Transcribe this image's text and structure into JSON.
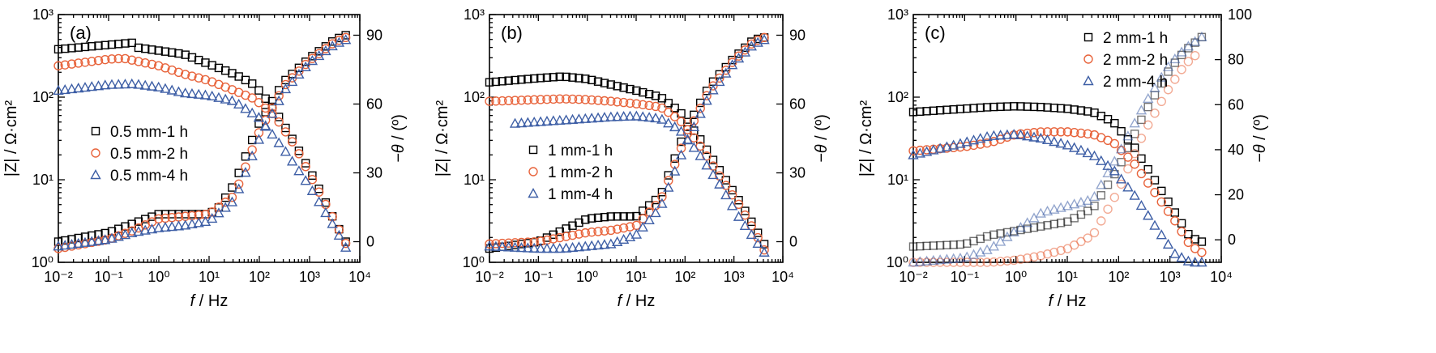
{
  "chart_data": [
    {
      "type": "scatter",
      "panel_label": "(a)",
      "xlabel_italic": "f",
      "xlabel_unit": " / Hz",
      "ylabel": "|Z| / Ω·cm²",
      "y2label_italic": "−θ",
      "y2label_unit": " / (º)",
      "x_scale": "log",
      "xlim": [
        0.01,
        10000
      ],
      "x_tick_labels": [
        "10⁻²",
        "10⁻¹",
        "10⁰",
        "10¹",
        "10²",
        "10³",
        "10⁴"
      ],
      "y_scale": "log",
      "ylim": [
        1,
        1000
      ],
      "y_tick_labels": [
        "10⁰",
        "10¹",
        "10²",
        "10³"
      ],
      "y2lim": [
        -9,
        99
      ],
      "y2_ticks": [
        0,
        30,
        60,
        90
      ],
      "y2_tick_labels": [
        "0",
        "30",
        "60",
        "90"
      ],
      "legend_position": "middle-left",
      "series": [
        {
          "name": "0.5 mm-1 h",
          "marker": "square",
          "color": "#000000",
          "modulus": {
            "log_f": [
              -2,
              -0.5,
              -1,
              0.5,
              1,
              1.5,
              1.9,
              2.3,
              2.7,
              3.1,
              3.5,
              3.72
            ],
            "log_z": [
              2.58,
              2.66,
              2.65,
              2.52,
              2.4,
              2.28,
              2.15,
              1.85,
              1.45,
              1.0,
              0.5,
              0.25
            ]
          },
          "phase": {
            "log_f": [
              -2,
              -1,
              -0.5,
              0,
              0.5,
              1,
              1.2,
              1.5,
              2,
              2.5,
              3,
              3.5,
              3.72
            ],
            "deg": [
              0,
              4,
              8,
              12,
              12,
              12,
              15,
              25,
              52,
              70,
              80,
              88,
              90
            ]
          }
        },
        {
          "name": "0.5 mm-2 h",
          "marker": "circle",
          "color": "#E8643C",
          "modulus": {
            "log_f": [
              -2,
              -1,
              -0.7,
              0,
              0.5,
              1,
              1.5,
              1.9,
              2.3,
              2.7,
              3.1,
              3.5,
              3.72
            ],
            "log_z": [
              2.38,
              2.46,
              2.47,
              2.38,
              2.28,
              2.2,
              2.08,
              1.98,
              1.78,
              1.42,
              0.95,
              0.5,
              0.23
            ]
          },
          "phase": {
            "log_f": [
              -2,
              -1,
              -0.5,
              0,
              0.5,
              1,
              1.5,
              2,
              2.5,
              3,
              3.5,
              3.72
            ],
            "deg": [
              -3,
              1,
              5,
              10,
              11,
              12,
              20,
              48,
              68,
              79,
              87,
              89
            ]
          }
        },
        {
          "name": "0.5 mm-4 h",
          "marker": "triangle",
          "color": "#3E5FA6",
          "modulus": {
            "log_f": [
              -2,
              -1,
              -0.5,
              0,
              0.5,
              1,
              1.5,
              2,
              2.5,
              3,
              3.5,
              3.72
            ],
            "log_z": [
              2.08,
              2.15,
              2.16,
              2.12,
              2.05,
              2.02,
              1.95,
              1.75,
              1.36,
              0.92,
              0.42,
              0.18
            ]
          },
          "phase": {
            "log_f": [
              -2,
              -1,
              -0.5,
              0,
              0.5,
              1,
              1.5,
              2,
              2.5,
              3,
              3.5,
              3.72
            ],
            "deg": [
              -2,
              1,
              4,
              6,
              7,
              9,
              18,
              45,
              66,
              78,
              86,
              88
            ]
          }
        }
      ],
      "legend": {
        "entries": [
          "0.5 mm-1 h",
          "0.5 mm-2 h",
          "0.5 mm-4 h"
        ]
      }
    },
    {
      "type": "scatter",
      "panel_label": "(b)",
      "xlabel_italic": "f",
      "xlabel_unit": " / Hz",
      "ylabel": "|Z| / Ω·cm²",
      "y2label_italic": "−θ",
      "y2label_unit": " / (º)",
      "x_scale": "log",
      "xlim": [
        0.01,
        10000
      ],
      "x_tick_labels": [
        "10⁻²",
        "10⁻¹",
        "10⁰",
        "10¹",
        "10²",
        "10³",
        "10⁴"
      ],
      "y_scale": "log",
      "ylim": [
        1,
        1000
      ],
      "y_tick_labels": [
        "10⁰",
        "10¹",
        "10²",
        "10³"
      ],
      "y2lim": [
        -9,
        99
      ],
      "y2_ticks": [
        0,
        30,
        60,
        90
      ],
      "y2_tick_labels": [
        "0",
        "30",
        "60",
        "90"
      ],
      "legend_position": "middle-left",
      "series": [
        {
          "name": "1 mm-1 h",
          "marker": "square",
          "color": "#000000",
          "modulus": {
            "log_f": [
              -2,
              -1,
              -0.5,
              0,
              0.5,
              1,
              1.5,
              1.9,
              2.3,
              2.7,
              3.1,
              3.4,
              3.62
            ],
            "log_z": [
              2.18,
              2.23,
              2.25,
              2.22,
              2.15,
              2.08,
              2.0,
              1.82,
              1.5,
              1.12,
              0.75,
              0.45,
              0.22
            ]
          },
          "phase": {
            "log_f": [
              -2,
              -1,
              -0.5,
              0,
              0.5,
              1,
              1.5,
              2,
              2.5,
              3,
              3.4,
              3.62
            ],
            "deg": [
              -3,
              0,
              5,
              10,
              11,
              11,
              20,
              48,
              68,
              80,
              88,
              89
            ]
          }
        },
        {
          "name": "1 mm-2 h",
          "marker": "circle",
          "color": "#E8643C",
          "modulus": {
            "log_f": [
              -2,
              -1,
              -0.5,
              0,
              0.5,
              1,
              1.5,
              1.9,
              2.3,
              2.7,
              3.1,
              3.4,
              3.62
            ],
            "log_z": [
              1.95,
              1.97,
              1.98,
              1.97,
              1.95,
              1.92,
              1.88,
              1.72,
              1.42,
              1.05,
              0.7,
              0.4,
              0.15
            ]
          },
          "phase": {
            "log_f": [
              -2,
              -1,
              -0.5,
              0,
              0.5,
              1,
              1.5,
              2,
              2.5,
              3,
              3.4,
              3.62
            ],
            "deg": [
              -1,
              0,
              2,
              4,
              5,
              7,
              18,
              45,
              66,
              79,
              87,
              89
            ]
          }
        },
        {
          "name": "1 mm-4 h",
          "marker": "triangle",
          "color": "#3E5FA6",
          "modulus": {
            "log_f": [
              -1.5,
              -1,
              -0.5,
              0,
              0.5,
              1,
              1.5,
              1.9,
              2.3,
              2.7,
              3.1,
              3.4,
              3.62
            ],
            "log_z": [
              1.68,
              1.7,
              1.72,
              1.74,
              1.76,
              1.77,
              1.74,
              1.6,
              1.3,
              0.95,
              0.55,
              0.3,
              0.12
            ]
          },
          "phase": {
            "log_f": [
              -2,
              -1,
              -0.5,
              0,
              0.5,
              1,
              1.5,
              2,
              2.5,
              3,
              3.4,
              3.62
            ],
            "deg": [
              -2,
              -3,
              -3,
              -2,
              -1,
              3,
              15,
              42,
              64,
              78,
              86,
              88
            ]
          }
        }
      ],
      "legend": {
        "entries": [
          "1 mm-1 h",
          "1 mm-2 h",
          "1 mm-4 h"
        ]
      }
    },
    {
      "type": "scatter",
      "panel_label": "(c)",
      "xlabel_italic": "f",
      "xlabel_unit": " / Hz",
      "ylabel": "|Z| / Ω·cm²",
      "y2label_italic": "−θ",
      "y2label_unit": " / (º)",
      "x_scale": "log",
      "xlim": [
        0.01,
        10000
      ],
      "x_tick_labels": [
        "10⁻²",
        "10⁻¹",
        "10⁰",
        "10¹",
        "10²",
        "10³",
        "10⁴"
      ],
      "y_scale": "log",
      "ylim": [
        1,
        1000
      ],
      "y_tick_labels": [
        "10⁰",
        "10¹",
        "10²",
        "10³"
      ],
      "y2lim": [
        -10,
        100
      ],
      "y2_ticks": [
        0,
        20,
        40,
        60,
        80,
        100
      ],
      "y2_tick_labels": [
        "0",
        "20",
        "40",
        "60",
        "80",
        "100"
      ],
      "legend_position": "top-right",
      "series": [
        {
          "name": "2 mm-1 h",
          "marker": "square",
          "color": "#000000",
          "modulus": {
            "log_f": [
              -2,
              -1,
              -0.5,
              0,
              0.5,
              1,
              1.5,
              1.9,
              2.3,
              2.7,
              3.1,
              3.4,
              3.62
            ],
            "log_z": [
              1.82,
              1.86,
              1.88,
              1.89,
              1.88,
              1.86,
              1.82,
              1.7,
              1.4,
              1.0,
              0.6,
              0.3,
              0.25
            ]
          },
          "phase": {
            "log_f": [
              -2,
              -1,
              -0.5,
              0,
              0.5,
              1,
              1.5,
              2,
              2.5,
              3,
              3.3,
              3.62
            ],
            "deg": [
              -3,
              -2,
              2,
              4,
              6,
              8,
              14,
              32,
              56,
              76,
              84,
              90
            ]
          }
        },
        {
          "name": "2 mm-2 h",
          "marker": "circle",
          "color": "#E8643C",
          "modulus": {
            "log_f": [
              -2,
              -1,
              -0.5,
              0,
              0.5,
              1,
              1.5,
              1.9,
              2.3,
              2.7,
              3.1,
              3.4,
              3.62
            ],
            "log_z": [
              1.35,
              1.4,
              1.45,
              1.55,
              1.58,
              1.58,
              1.55,
              1.45,
              1.2,
              0.85,
              0.5,
              0.2,
              0.12
            ]
          },
          "phase": {
            "log_f": [
              -2,
              -1,
              -0.5,
              0,
              0.5,
              1,
              1.5,
              2,
              2.5,
              3,
              3.3,
              3.6
            ],
            "deg": [
              -10,
              -10,
              -10,
              -9,
              -7,
              -4,
              2,
              22,
              48,
              68,
              78,
              84
            ]
          }
        },
        {
          "name": "2 mm-4 h",
          "marker": "triangle",
          "color": "#3E5FA6",
          "modulus": {
            "log_f": [
              -2,
              -1,
              -0.5,
              0,
              0.5,
              1,
              1.5,
              1.9,
              2.3,
              2.7,
              3.1,
              3.4,
              3.62
            ],
            "log_z": [
              1.3,
              1.45,
              1.53,
              1.55,
              1.5,
              1.42,
              1.3,
              1.12,
              0.82,
              0.45,
              0.1,
              0.0,
              0.0
            ]
          },
          "phase": {
            "log_f": [
              -2,
              -1,
              -0.5,
              0,
              0.5,
              1,
              1.5,
              2,
              2.5,
              3,
              3.3,
              3.62
            ],
            "deg": [
              -10,
              -8,
              -4,
              4,
              12,
              15,
              18,
              38,
              60,
              78,
              85,
              90
            ]
          }
        }
      ],
      "legend": {
        "entries": [
          "2 mm-1 h",
          "2 mm-2 h",
          "2 mm-4 h"
        ]
      }
    }
  ]
}
